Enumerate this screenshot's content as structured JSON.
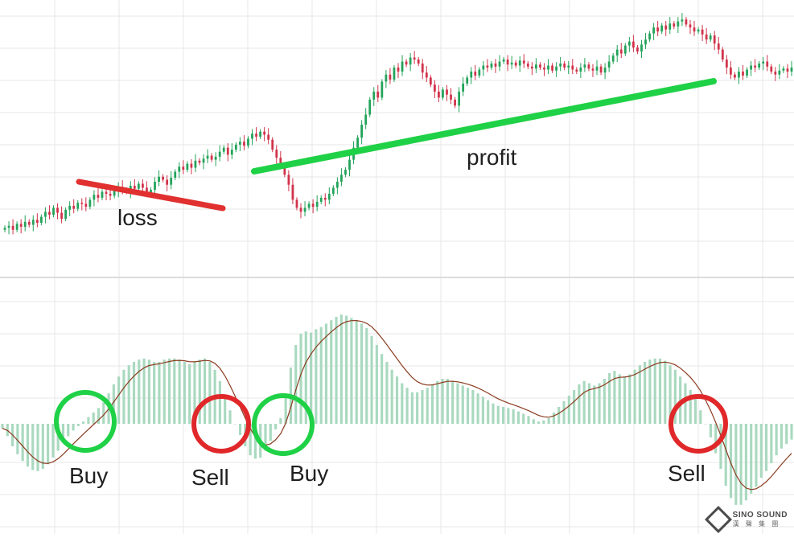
{
  "colors": {
    "up": "#23a35a",
    "down": "#d1334a",
    "hist": "#a9d9bf",
    "signal": "#8a3b1f",
    "grid": "#e7e7e7",
    "loss_line": "#e0302f",
    "profit_line": "#1fd146",
    "buy_circle": "#1fd146",
    "sell_circle": "#e0282a"
  },
  "chart_data": [
    {
      "type": "candlestick",
      "grid": true,
      "close": [
        0.42,
        0.44,
        0.4,
        0.46,
        0.43,
        0.48,
        0.45,
        0.5,
        0.47,
        0.53,
        0.58,
        0.55,
        0.62,
        0.57,
        0.51,
        0.6,
        0.64,
        0.61,
        0.67,
        0.66,
        0.63,
        0.7,
        0.75,
        0.72,
        0.78,
        0.76,
        0.74,
        0.79,
        0.83,
        0.8,
        0.78,
        0.84,
        0.81,
        0.86,
        0.82,
        0.77,
        0.8,
        0.88,
        0.93,
        0.9,
        0.85,
        0.92,
        0.98,
        1.03,
        1.0,
        1.06,
        1.02,
        1.09,
        1.07,
        1.11,
        1.14,
        1.1,
        1.13,
        1.18,
        1.22,
        1.15,
        1.2,
        1.25,
        1.28,
        1.24,
        1.31,
        1.36,
        1.33,
        1.38,
        1.35,
        1.3,
        1.2,
        1.12,
        1.05,
        0.95,
        0.85,
        0.7,
        0.62,
        0.58,
        0.62,
        0.66,
        0.63,
        0.68,
        0.72,
        0.7,
        0.76,
        0.82,
        0.88,
        0.95,
        1.0,
        1.1,
        1.22,
        1.32,
        1.45,
        1.55,
        1.7,
        1.78,
        1.72,
        1.88,
        1.95,
        1.9,
        2.02,
        1.98,
        2.08,
        2.05,
        2.12,
        2.1,
        2.06,
        1.97,
        1.92,
        1.85,
        1.78,
        1.72,
        1.8,
        1.75,
        1.7,
        1.64,
        1.78,
        1.86,
        1.92,
        1.98,
        1.94,
        2.0,
        2.04,
        2.02,
        2.06,
        2.03,
        2.08,
        2.1,
        2.05,
        2.07,
        2.04,
        2.09,
        2.06,
        2.03,
        2.01,
        2.05,
        2.02,
        2.0,
        2.04,
        1.99,
        2.03,
        2.06,
        2.02,
        2.04,
        2.0,
        1.98,
        2.02,
        2.05,
        2.01,
        1.99,
        2.03,
        1.97,
        2.02,
        2.08,
        2.14,
        2.2,
        2.16,
        2.24,
        2.28,
        2.22,
        2.18,
        2.25,
        2.3,
        2.36,
        2.42,
        2.38,
        2.44,
        2.4,
        2.46,
        2.43,
        2.48,
        2.5,
        2.45,
        2.42,
        2.38,
        2.4,
        2.35,
        2.3,
        2.34,
        2.26,
        2.2,
        2.1,
        2.02,
        1.95,
        1.92,
        1.98,
        1.94,
        2.0,
        2.04,
        2.02,
        2.06,
        2.08,
        2.03,
        1.98,
        1.95,
        1.99,
        2.01,
        1.98,
        2.02
      ]
    },
    {
      "type": "bar",
      "grid": true,
      "values": [
        -4,
        -11,
        -20,
        -27,
        -33,
        -38,
        -41,
        -42,
        -40,
        -36,
        -30,
        -24,
        -17,
        -11,
        -6,
        -2,
        2,
        6,
        10,
        14,
        19,
        27,
        35,
        42,
        48,
        52,
        55,
        57,
        58,
        57,
        55,
        55,
        57,
        58,
        58,
        57,
        55,
        53,
        55,
        57,
        58,
        55,
        48,
        38,
        25,
        12,
        0,
        -10,
        -20,
        -28,
        -31,
        -30,
        -24,
        -15,
        -5,
        5,
        25,
        50,
        70,
        80,
        82,
        81,
        84,
        86,
        89,
        92,
        95,
        97,
        96,
        94,
        92,
        89,
        85,
        78,
        70,
        62,
        55,
        48,
        42,
        36,
        32,
        28,
        28,
        30,
        32,
        35,
        38,
        40,
        40,
        38,
        36,
        34,
        32,
        30,
        27,
        24,
        21,
        18,
        16,
        15,
        14,
        13,
        11,
        9,
        7,
        4,
        2,
        3,
        5,
        10,
        15,
        20,
        25,
        30,
        35,
        38,
        36,
        34,
        36,
        40,
        45,
        47,
        44,
        42,
        44,
        48,
        52,
        55,
        57,
        58,
        58,
        56,
        52,
        48,
        42,
        36,
        30,
        22,
        12,
        0,
        -12,
        -26,
        -40,
        -55,
        -66,
        -72,
        -72,
        -68,
        -62,
        -56,
        -48,
        -42,
        -35,
        -28,
        -22,
        -18,
        -14
      ]
    }
  ],
  "annotations": {
    "loss": "loss",
    "profit": "profit",
    "buy_1": "Buy",
    "sell_1": "Sell",
    "buy_2": "Buy",
    "sell_2": "Sell"
  },
  "logo": {
    "name": "SINO SOUND",
    "subtitle": "漢 聲 集 團"
  }
}
